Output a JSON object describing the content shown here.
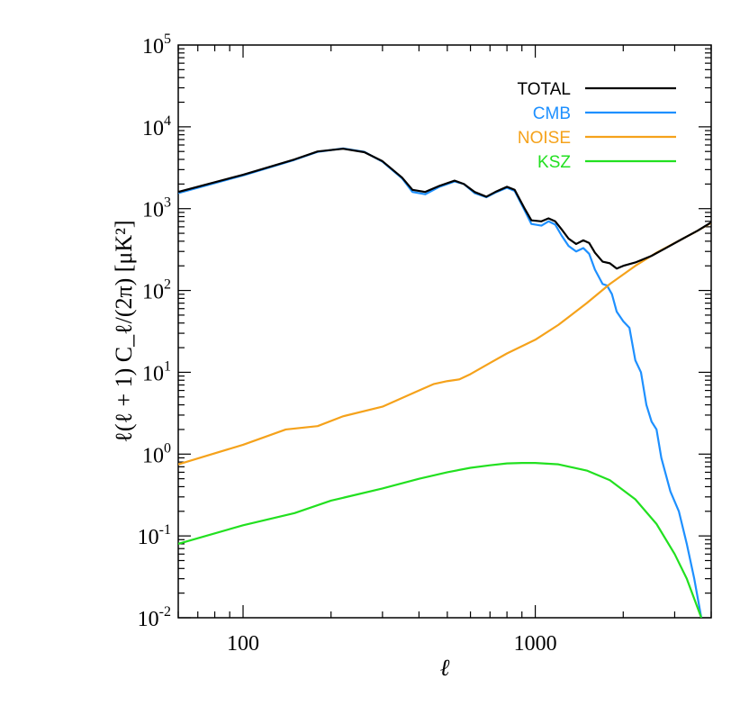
{
  "chart_data": {
    "type": "line",
    "xscale": "log",
    "yscale": "log",
    "xlim": [
      60,
      4000
    ],
    "ylim": [
      0.01,
      100000
    ],
    "xlabel": "ℓ",
    "ylabel": "ℓ(ℓ + 1)  C_ℓ/(2π)  [μK²]",
    "xticks": [
      {
        "value": 100,
        "label": "100"
      },
      {
        "value": 1000,
        "label": "1000"
      }
    ],
    "yticks": [
      {
        "value": 0.01,
        "base": "10",
        "exp": "-2"
      },
      {
        "value": 0.1,
        "base": "10",
        "exp": "-1"
      },
      {
        "value": 1,
        "base": "10",
        "exp": "0"
      },
      {
        "value": 10,
        "base": "10",
        "exp": "1"
      },
      {
        "value": 100,
        "base": "10",
        "exp": "2"
      },
      {
        "value": 1000,
        "base": "10",
        "exp": "3"
      },
      {
        "value": 10000,
        "base": "10",
        "exp": "4"
      },
      {
        "value": 100000,
        "base": "10",
        "exp": "5"
      }
    ],
    "legend_position": "top-right",
    "grid": false,
    "series": [
      {
        "name": "TOTAL",
        "color": "#000000",
        "points": [
          [
            60,
            1600
          ],
          [
            100,
            2600
          ],
          [
            150,
            4000
          ],
          [
            180,
            5000
          ],
          [
            220,
            5400
          ],
          [
            260,
            4900
          ],
          [
            300,
            3800
          ],
          [
            350,
            2400
          ],
          [
            380,
            1700
          ],
          [
            420,
            1600
          ],
          [
            470,
            1900
          ],
          [
            530,
            2200
          ],
          [
            570,
            2000
          ],
          [
            620,
            1600
          ],
          [
            680,
            1400
          ],
          [
            730,
            1600
          ],
          [
            800,
            1850
          ],
          [
            850,
            1700
          ],
          [
            920,
            1000
          ],
          [
            970,
            720
          ],
          [
            1050,
            700
          ],
          [
            1110,
            760
          ],
          [
            1170,
            700
          ],
          [
            1230,
            560
          ],
          [
            1300,
            430
          ],
          [
            1380,
            370
          ],
          [
            1460,
            410
          ],
          [
            1530,
            380
          ],
          [
            1600,
            290
          ],
          [
            1700,
            225
          ],
          [
            1800,
            215
          ],
          [
            1900,
            185
          ],
          [
            2000,
            200
          ],
          [
            2200,
            220
          ],
          [
            2500,
            265
          ],
          [
            2800,
            330
          ],
          [
            3200,
            430
          ],
          [
            3600,
            540
          ],
          [
            4000,
            680
          ]
        ]
      },
      {
        "name": "CMB",
        "color": "#1e90ff",
        "points": [
          [
            60,
            1550
          ],
          [
            100,
            2550
          ],
          [
            150,
            3950
          ],
          [
            180,
            4950
          ],
          [
            220,
            5450
          ],
          [
            260,
            4950
          ],
          [
            300,
            3750
          ],
          [
            350,
            2350
          ],
          [
            380,
            1600
          ],
          [
            420,
            1500
          ],
          [
            470,
            1850
          ],
          [
            530,
            2150
          ],
          [
            570,
            2000
          ],
          [
            620,
            1550
          ],
          [
            680,
            1380
          ],
          [
            730,
            1570
          ],
          [
            800,
            1800
          ],
          [
            850,
            1650
          ],
          [
            920,
            950
          ],
          [
            970,
            650
          ],
          [
            1050,
            620
          ],
          [
            1110,
            700
          ],
          [
            1170,
            640
          ],
          [
            1230,
            470
          ],
          [
            1300,
            350
          ],
          [
            1380,
            300
          ],
          [
            1460,
            330
          ],
          [
            1530,
            280
          ],
          [
            1600,
            180
          ],
          [
            1700,
            120
          ],
          [
            1760,
            115
          ],
          [
            1830,
            90
          ],
          [
            1900,
            55
          ],
          [
            2000,
            42
          ],
          [
            2100,
            35
          ],
          [
            2200,
            14
          ],
          [
            2300,
            10
          ],
          [
            2400,
            4
          ],
          [
            2500,
            2.5
          ],
          [
            2600,
            2
          ],
          [
            2700,
            0.9
          ],
          [
            2900,
            0.35
          ],
          [
            3100,
            0.2
          ],
          [
            3300,
            0.08
          ],
          [
            3500,
            0.03
          ],
          [
            3700,
            0.01
          ]
        ]
      },
      {
        "name": "NOISE",
        "color": "#f5a21b",
        "points": [
          [
            60,
            0.75
          ],
          [
            100,
            1.3
          ],
          [
            140,
            2.0
          ],
          [
            180,
            2.2
          ],
          [
            220,
            2.9
          ],
          [
            300,
            3.8
          ],
          [
            400,
            6.0
          ],
          [
            450,
            7.2
          ],
          [
            500,
            7.8
          ],
          [
            550,
            8.2
          ],
          [
            600,
            9.5
          ],
          [
            700,
            13
          ],
          [
            800,
            17
          ],
          [
            1000,
            25
          ],
          [
            1200,
            38
          ],
          [
            1500,
            70
          ],
          [
            1800,
            120
          ],
          [
            2200,
            200
          ],
          [
            2600,
            290
          ],
          [
            3000,
            380
          ],
          [
            3500,
            510
          ],
          [
            4000,
            670
          ]
        ]
      },
      {
        "name": "KSZ",
        "color": "#22e020",
        "points": [
          [
            60,
            0.08
          ],
          [
            100,
            0.135
          ],
          [
            150,
            0.19
          ],
          [
            200,
            0.27
          ],
          [
            300,
            0.38
          ],
          [
            400,
            0.5
          ],
          [
            500,
            0.6
          ],
          [
            600,
            0.68
          ],
          [
            700,
            0.73
          ],
          [
            800,
            0.77
          ],
          [
            900,
            0.78
          ],
          [
            1000,
            0.78
          ],
          [
            1200,
            0.75
          ],
          [
            1500,
            0.63
          ],
          [
            1800,
            0.48
          ],
          [
            2200,
            0.28
          ],
          [
            2600,
            0.14
          ],
          [
            3000,
            0.06
          ],
          [
            3300,
            0.03
          ],
          [
            3600,
            0.013
          ],
          [
            3700,
            0.01
          ]
        ]
      }
    ]
  }
}
